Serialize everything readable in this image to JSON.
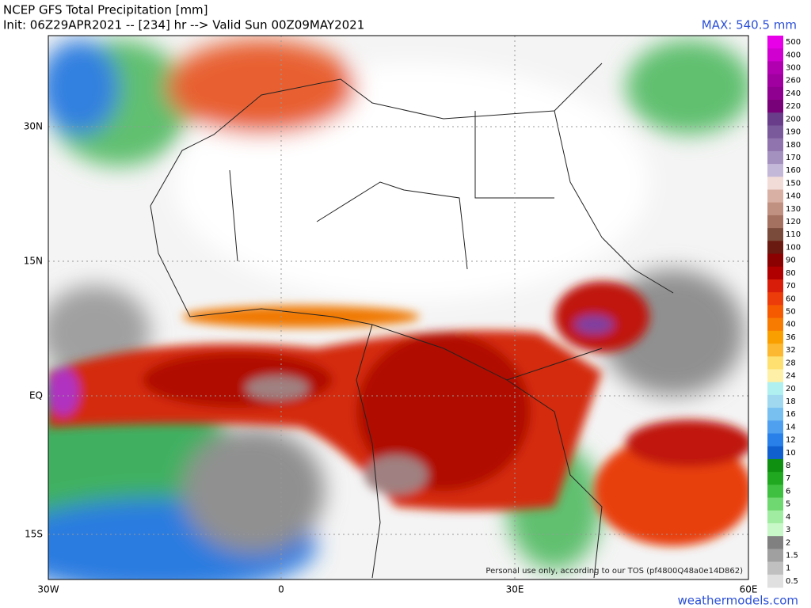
{
  "header": {
    "title": "NCEP GFS Total Precipitation [mm]",
    "subtitle": "Init: 06Z29APR2021 -- [234] hr --> Valid Sun 00Z09MAY2021",
    "max": "MAX: 540.5 mm"
  },
  "map": {
    "lat_labels": [
      "30N",
      "15N",
      "EQ",
      "15S"
    ],
    "lon_labels": [
      "30W",
      "0",
      "30E",
      "60E"
    ],
    "watermark": "Personal use only, according to our TOS (pf4800Q48a0e14D862)"
  },
  "colorbar": {
    "levels": [
      {
        "value": 500,
        "color": "#e800e8"
      },
      {
        "value": 400,
        "color": "#d000d0"
      },
      {
        "value": 300,
        "color": "#b000b0"
      },
      {
        "value": 260,
        "color": "#a000a0"
      },
      {
        "value": 240,
        "color": "#900090"
      },
      {
        "value": 220,
        "color": "#780078"
      },
      {
        "value": 200,
        "color": "#6a3d8a"
      },
      {
        "value": 190,
        "color": "#7a5a9a"
      },
      {
        "value": 180,
        "color": "#8f74ad"
      },
      {
        "value": 170,
        "color": "#a491c0"
      },
      {
        "value": 160,
        "color": "#c4b8d8"
      },
      {
        "value": 150,
        "color": "#f2dcd8"
      },
      {
        "value": 140,
        "color": "#d8b0a4"
      },
      {
        "value": 130,
        "color": "#c09080"
      },
      {
        "value": 120,
        "color": "#a47060"
      },
      {
        "value": 110,
        "color": "#7a4a3a"
      },
      {
        "value": 100,
        "color": "#6a1a10"
      },
      {
        "value": 90,
        "color": "#8b0000"
      },
      {
        "value": 80,
        "color": "#b00000"
      },
      {
        "value": 70,
        "color": "#d81e0a"
      },
      {
        "value": 60,
        "color": "#ec3c0a"
      },
      {
        "value": 50,
        "color": "#f55a00"
      },
      {
        "value": 40,
        "color": "#f77b00"
      },
      {
        "value": 36,
        "color": "#f9a000"
      },
      {
        "value": 32,
        "color": "#fbb830"
      },
      {
        "value": 28,
        "color": "#fde070"
      },
      {
        "value": 24,
        "color": "#fff0a8"
      },
      {
        "value": 20,
        "color": "#b0f0f0"
      },
      {
        "value": 18,
        "color": "#a0d8f0"
      },
      {
        "value": 16,
        "color": "#78c0f0"
      },
      {
        "value": 14,
        "color": "#50a0f0"
      },
      {
        "value": 12,
        "color": "#2880e8"
      },
      {
        "value": 10,
        "color": "#1060d0"
      },
      {
        "value": 8,
        "color": "#109010"
      },
      {
        "value": 7,
        "color": "#20a820"
      },
      {
        "value": 6,
        "color": "#40c040"
      },
      {
        "value": 5,
        "color": "#70d870"
      },
      {
        "value": 4,
        "color": "#a0eca0"
      },
      {
        "value": 3,
        "color": "#c8f8c8"
      },
      {
        "value": 2,
        "color": "#808080"
      },
      {
        "value": 1.5,
        "color": "#a0a0a0"
      },
      {
        "value": 1,
        "color": "#c0c0c0"
      },
      {
        "value": 0.5,
        "color": "#e0e0e0"
      }
    ]
  },
  "footer": {
    "site": "weathermodels.com"
  }
}
